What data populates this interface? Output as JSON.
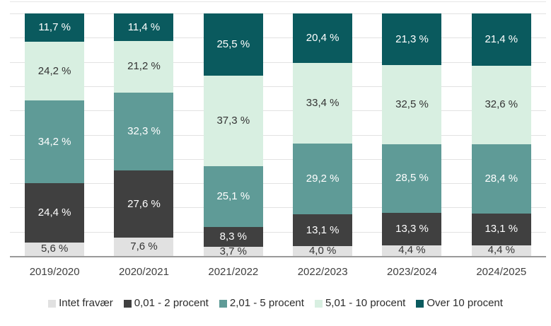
{
  "chart": {
    "background": "#ffffff",
    "gridline_color": "#e2e2e2",
    "axis_line_color": "#9a9a9a",
    "category_label_color": "#404040",
    "legend_text_color": "#2b2b2b"
  },
  "chart_data": {
    "type": "bar",
    "variant": "stacked-100-vertical",
    "title": "",
    "xlabel": "",
    "ylabel": "",
    "ylim": [
      0,
      100
    ],
    "gridline_interval_pct": 10,
    "grid": "on",
    "legend_position": "bottom",
    "value_suffix": " %",
    "decimal_separator": ",",
    "categories": [
      "2019/2020",
      "2020/2021",
      "2021/2022",
      "2022/2023",
      "2023/2024",
      "2024/2025"
    ],
    "series": [
      {
        "name": "Intet fravær",
        "color": "#e1e1e1",
        "label_color": "#333333",
        "values": [
          5.6,
          7.6,
          3.7,
          4.0,
          4.4,
          4.4
        ],
        "labels": [
          "5,6 %",
          "7,6 %",
          "3,7 %",
          "4,0 %",
          "4,4 %",
          "4,4 %"
        ]
      },
      {
        "name": "0,01 - 2 procent",
        "color": "#404040",
        "label_color": "#ffffff",
        "values": [
          24.4,
          27.6,
          8.3,
          13.1,
          13.3,
          13.1
        ],
        "labels": [
          "24,4 %",
          "27,6 %",
          "8,3 %",
          "13,1 %",
          "13,3 %",
          "13,1 %"
        ]
      },
      {
        "name": "2,01 - 5 procent",
        "color": "#5f9b97",
        "label_color": "#ffffff",
        "values": [
          34.2,
          32.3,
          25.1,
          29.2,
          28.5,
          28.4
        ],
        "labels": [
          "34,2 %",
          "32,3 %",
          "25,1 %",
          "29,2 %",
          "28,5 %",
          "28,4 %"
        ]
      },
      {
        "name": "5,01 - 10 procent",
        "color": "#d8efe1",
        "label_color": "#333333",
        "values": [
          24.2,
          21.2,
          37.3,
          33.4,
          32.5,
          32.6
        ],
        "labels": [
          "24,2 %",
          "21,2 %",
          "37,3 %",
          "33,4 %",
          "32,5 %",
          "32,6 %"
        ]
      },
      {
        "name": "Over 10 procent",
        "color": "#0a5a5e",
        "label_color": "#ffffff",
        "values": [
          11.7,
          11.4,
          25.5,
          20.4,
          21.3,
          21.4
        ],
        "labels": [
          "11,7 %",
          "11,4 %",
          "25,5 %",
          "20,4 %",
          "21,3 %",
          "21,4 %"
        ]
      }
    ]
  }
}
